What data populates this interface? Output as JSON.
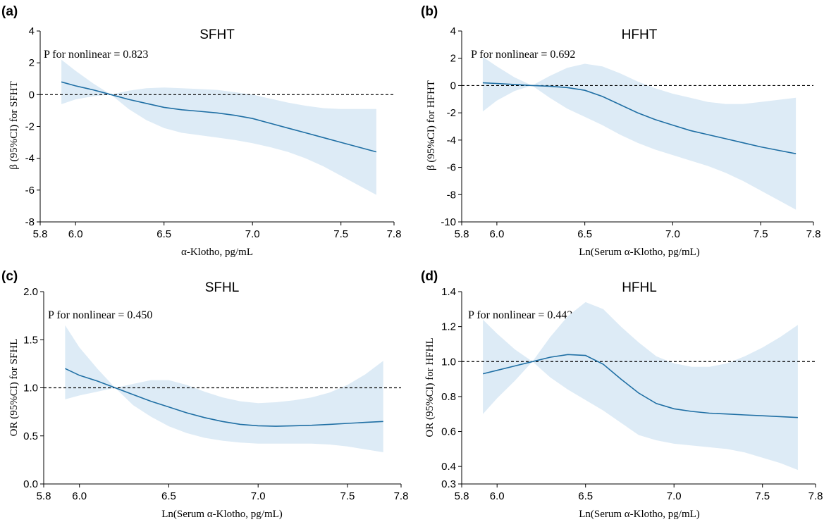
{
  "colors": {
    "band": "#ddebf6",
    "line": "#1f6fa4",
    "axis": "#000000",
    "reference": "#000000"
  },
  "chart_data": [
    {
      "type": "line",
      "panel_label": "(a)",
      "title": "SFHT",
      "annotation": "P for nonlinear = 0.823",
      "xlabel": "α-Klotho, pg/mL",
      "ylabel": "β (95%CI) for SFHT",
      "xlim": [
        5.8,
        7.8
      ],
      "ylim": [
        -8,
        4
      ],
      "xticks": [
        5.8,
        6.0,
        6.5,
        7.0,
        7.5,
        7.8
      ],
      "xtick_labels": [
        "5.8",
        "6.0",
        "6.5",
        "7.0",
        "7.5",
        "7.8"
      ],
      "yticks": [
        -8,
        -6,
        -4,
        -2,
        0,
        2,
        4
      ],
      "ytick_labels": [
        "-8",
        "-6",
        "-4",
        "-2",
        "0",
        "2",
        "4"
      ],
      "reference_line": 0,
      "series": [
        {
          "name": "estimate",
          "x": [
            5.92,
            6.0,
            6.1,
            6.2,
            6.3,
            6.4,
            6.5,
            6.6,
            6.7,
            6.8,
            6.9,
            7.0,
            7.1,
            7.2,
            7.3,
            7.4,
            7.5,
            7.6,
            7.7
          ],
          "y": [
            0.8,
            0.55,
            0.3,
            0.0,
            -0.3,
            -0.55,
            -0.8,
            -0.95,
            -1.05,
            -1.15,
            -1.3,
            -1.5,
            -1.8,
            -2.1,
            -2.4,
            -2.7,
            -3.0,
            -3.3,
            -3.6
          ],
          "lower": [
            -0.6,
            -0.3,
            -0.1,
            0.0,
            -0.9,
            -1.6,
            -2.1,
            -2.4,
            -2.55,
            -2.7,
            -2.85,
            -3.05,
            -3.3,
            -3.6,
            -4.0,
            -4.5,
            -5.1,
            -5.7,
            -6.3
          ],
          "upper": [
            2.2,
            1.5,
            0.7,
            0.0,
            0.25,
            0.4,
            0.45,
            0.4,
            0.35,
            0.3,
            0.15,
            0.0,
            -0.25,
            -0.5,
            -0.7,
            -0.85,
            -0.9,
            -0.9,
            -0.9
          ]
        }
      ]
    },
    {
      "type": "line",
      "panel_label": "(b)",
      "title": "HFHT",
      "annotation": "P for nonlinear = 0.692",
      "xlabel": "Ln(Serum α-Klotho, pg/mL)",
      "ylabel": "β (95%CI) for HFHT",
      "xlim": [
        5.8,
        7.8
      ],
      "ylim": [
        -10,
        4
      ],
      "xticks": [
        5.8,
        6.0,
        6.5,
        7.0,
        7.5,
        7.8
      ],
      "xtick_labels": [
        "5.8",
        "6.0",
        "6.5",
        "7.0",
        "7.5",
        "7.8"
      ],
      "yticks": [
        -10,
        -8,
        -6,
        -4,
        -2,
        0,
        2,
        4
      ],
      "ytick_labels": [
        "-10",
        "-8",
        "-6",
        "-4",
        "-2",
        "0",
        "2",
        "4"
      ],
      "reference_line": 0,
      "series": [
        {
          "name": "estimate",
          "x": [
            5.92,
            6.0,
            6.1,
            6.2,
            6.3,
            6.4,
            6.5,
            6.6,
            6.7,
            6.8,
            6.9,
            7.0,
            7.1,
            7.2,
            7.3,
            7.4,
            7.5,
            7.6,
            7.7
          ],
          "y": [
            0.2,
            0.15,
            0.08,
            0.0,
            -0.05,
            -0.15,
            -0.35,
            -0.8,
            -1.4,
            -2.0,
            -2.5,
            -2.9,
            -3.3,
            -3.6,
            -3.9,
            -4.2,
            -4.5,
            -4.75,
            -5.0
          ],
          "lower": [
            -1.9,
            -1.1,
            -0.4,
            0.0,
            -0.9,
            -1.7,
            -2.3,
            -2.9,
            -3.6,
            -4.2,
            -4.7,
            -5.1,
            -5.5,
            -5.9,
            -6.4,
            -7.0,
            -7.7,
            -8.4,
            -9.1
          ],
          "upper": [
            2.1,
            1.4,
            0.6,
            0.0,
            0.7,
            1.3,
            1.6,
            1.4,
            0.9,
            0.3,
            -0.2,
            -0.6,
            -0.9,
            -1.2,
            -1.35,
            -1.35,
            -1.2,
            -1.05,
            -0.9
          ]
        }
      ]
    },
    {
      "type": "line",
      "panel_label": "(c)",
      "title": "SFHL",
      "annotation": "P for nonlinear = 0.450",
      "xlabel": "Ln(Serum α-Klotho, pg/mL)",
      "ylabel": "OR (95%CI) for SFHL",
      "xlim": [
        5.8,
        7.8
      ],
      "ylim": [
        0.0,
        2.0
      ],
      "xticks": [
        5.8,
        6.0,
        6.5,
        7.0,
        7.5,
        7.8
      ],
      "xtick_labels": [
        "5.8",
        "6.0",
        "6.5",
        "7.0",
        "7.5",
        "7.8"
      ],
      "yticks": [
        0.0,
        0.5,
        1.0,
        1.5,
        2.0
      ],
      "ytick_labels": [
        "0.0",
        "0.5",
        "1.0",
        "1.5",
        "2.0"
      ],
      "reference_line": 1.0,
      "series": [
        {
          "name": "estimate",
          "x": [
            5.92,
            6.0,
            6.1,
            6.2,
            6.3,
            6.4,
            6.5,
            6.6,
            6.7,
            6.8,
            6.9,
            7.0,
            7.1,
            7.2,
            7.3,
            7.4,
            7.5,
            7.6,
            7.7
          ],
          "y": [
            1.2,
            1.13,
            1.07,
            1.0,
            0.93,
            0.86,
            0.8,
            0.74,
            0.69,
            0.65,
            0.62,
            0.605,
            0.6,
            0.605,
            0.61,
            0.62,
            0.63,
            0.64,
            0.65
          ],
          "lower": [
            0.88,
            0.92,
            0.96,
            1.0,
            0.82,
            0.7,
            0.6,
            0.53,
            0.48,
            0.45,
            0.43,
            0.42,
            0.42,
            0.42,
            0.42,
            0.41,
            0.39,
            0.36,
            0.33
          ],
          "upper": [
            1.65,
            1.42,
            1.2,
            1.0,
            1.04,
            1.08,
            1.08,
            1.03,
            0.96,
            0.9,
            0.86,
            0.84,
            0.85,
            0.87,
            0.9,
            0.95,
            1.03,
            1.14,
            1.28
          ]
        }
      ]
    },
    {
      "type": "line",
      "panel_label": "(d)",
      "title": "HFHL",
      "annotation": "P for nonlinear = 0.442",
      "xlabel": "Ln(Serum α-Klotho, pg/mL)",
      "ylabel": "OR (95%CI) for HFHL",
      "xlim": [
        5.8,
        7.8
      ],
      "ylim": [
        0.3,
        1.4
      ],
      "xticks": [
        5.8,
        6.0,
        6.5,
        7.0,
        7.5,
        7.8
      ],
      "xtick_labels": [
        "5.8",
        "6.0",
        "6.5",
        "7.0",
        "7.5",
        "7.8"
      ],
      "yticks": [
        0.3,
        0.4,
        0.6,
        0.8,
        1.0,
        1.2,
        1.4
      ],
      "ytick_labels": [
        "0.3",
        "0.4",
        "0.6",
        "0.8",
        "1.0",
        "1.2",
        "1.4"
      ],
      "reference_line": 1.0,
      "series": [
        {
          "name": "estimate",
          "x": [
            5.92,
            6.0,
            6.1,
            6.2,
            6.3,
            6.4,
            6.5,
            6.6,
            6.7,
            6.8,
            6.9,
            7.0,
            7.1,
            7.2,
            7.3,
            7.4,
            7.5,
            7.6,
            7.7
          ],
          "y": [
            0.93,
            0.95,
            0.975,
            1.0,
            1.025,
            1.04,
            1.035,
            0.985,
            0.9,
            0.82,
            0.76,
            0.73,
            0.715,
            0.705,
            0.7,
            0.695,
            0.69,
            0.685,
            0.68
          ],
          "lower": [
            0.7,
            0.79,
            0.89,
            1.0,
            0.91,
            0.84,
            0.78,
            0.72,
            0.65,
            0.58,
            0.55,
            0.53,
            0.52,
            0.51,
            0.5,
            0.48,
            0.45,
            0.42,
            0.38
          ],
          "upper": [
            1.24,
            1.16,
            1.07,
            1.0,
            1.14,
            1.26,
            1.34,
            1.3,
            1.2,
            1.11,
            1.03,
            0.99,
            0.97,
            0.97,
            0.99,
            1.03,
            1.08,
            1.14,
            1.21
          ]
        }
      ]
    }
  ]
}
